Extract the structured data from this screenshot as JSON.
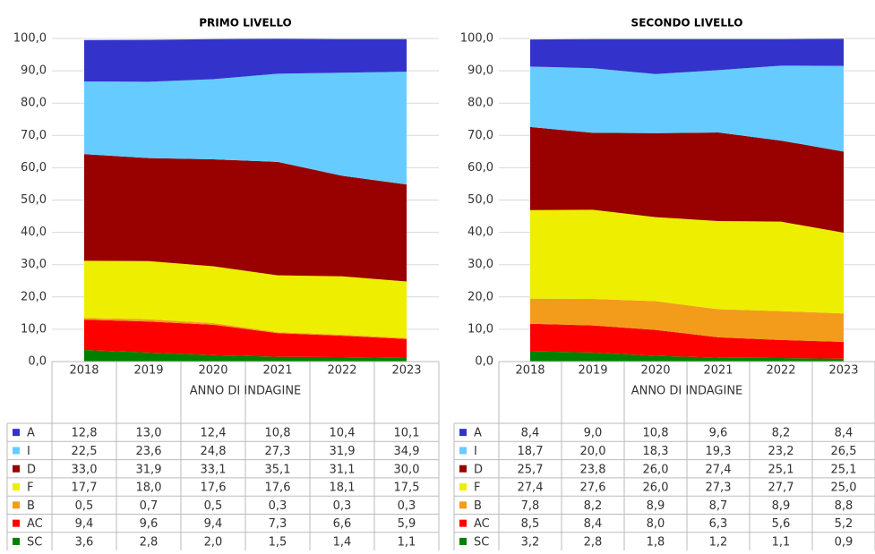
{
  "chart_data": [
    {
      "type": "area",
      "stacked": true,
      "title": "PRIMO LIVELLO",
      "xlabel": "ANNO DI INDAGINE",
      "categories": [
        "2018",
        "2019",
        "2020",
        "2021",
        "2022",
        "2023"
      ],
      "ylim": [
        0,
        100
      ],
      "yticks": [
        {
          "value": 0,
          "label": "0,0"
        },
        {
          "value": 10,
          "label": "10,0"
        },
        {
          "value": 20,
          "label": "20,0"
        },
        {
          "value": 30,
          "label": "30,0"
        },
        {
          "value": 40,
          "label": "40,0"
        },
        {
          "value": 50,
          "label": "50,0"
        },
        {
          "value": 60,
          "label": "60,0"
        },
        {
          "value": 70,
          "label": "70,0"
        },
        {
          "value": 80,
          "label": "80,0"
        },
        {
          "value": 90,
          "label": "90,0"
        },
        {
          "value": 100,
          "label": "100,0"
        }
      ],
      "grid": true,
      "series": [
        {
          "name": "A",
          "color": "#3333cc",
          "values": [
            12.8,
            13.0,
            12.4,
            10.8,
            10.4,
            10.1
          ],
          "value_labels": [
            "12,8",
            "13,0",
            "12,4",
            "10,8",
            "10,4",
            "10,1"
          ]
        },
        {
          "name": "I",
          "color": "#66ccff",
          "values": [
            22.5,
            23.6,
            24.8,
            27.3,
            31.9,
            34.9
          ],
          "value_labels": [
            "22,5",
            "23,6",
            "24,8",
            "27,3",
            "31,9",
            "34,9"
          ]
        },
        {
          "name": "D",
          "color": "#990000",
          "values": [
            33.0,
            31.9,
            33.1,
            35.1,
            31.1,
            30.0
          ],
          "value_labels": [
            "33,0",
            "31,9",
            "33,1",
            "35,1",
            "31,1",
            "30,0"
          ]
        },
        {
          "name": "F",
          "color": "#eeee00",
          "values": [
            17.7,
            18.0,
            17.6,
            17.6,
            18.1,
            17.5
          ],
          "value_labels": [
            "17,7",
            "18,0",
            "17,6",
            "17,6",
            "18,1",
            "17,5"
          ]
        },
        {
          "name": "B",
          "color": "#f39c1c",
          "values": [
            0.5,
            0.7,
            0.5,
            0.3,
            0.3,
            0.3
          ],
          "value_labels": [
            "0,5",
            "0,7",
            "0,5",
            "0,3",
            "0,3",
            "0,3"
          ]
        },
        {
          "name": "AC",
          "color": "#ff0000",
          "values": [
            9.4,
            9.6,
            9.4,
            7.3,
            6.6,
            5.9
          ],
          "value_labels": [
            "9,4",
            "9,6",
            "9,4",
            "7,3",
            "6,6",
            "5,9"
          ]
        },
        {
          "name": "SC",
          "color": "#008000",
          "values": [
            3.6,
            2.8,
            2.0,
            1.5,
            1.4,
            1.1
          ],
          "value_labels": [
            "3,6",
            "2,8",
            "2,0",
            "1,5",
            "1,4",
            "1,1"
          ]
        }
      ]
    },
    {
      "type": "area",
      "stacked": true,
      "title": "SECONDO LIVELLO",
      "xlabel": "ANNO DI INDAGINE",
      "categories": [
        "2018",
        "2019",
        "2020",
        "2021",
        "2022",
        "2023"
      ],
      "ylim": [
        0,
        100
      ],
      "yticks": [
        {
          "value": 0,
          "label": "0,0"
        },
        {
          "value": 10,
          "label": "10,0"
        },
        {
          "value": 20,
          "label": "20,0"
        },
        {
          "value": 30,
          "label": "30,0"
        },
        {
          "value": 40,
          "label": "40,0"
        },
        {
          "value": 50,
          "label": "50,0"
        },
        {
          "value": 60,
          "label": "60,0"
        },
        {
          "value": 70,
          "label": "70,0"
        },
        {
          "value": 80,
          "label": "80,0"
        },
        {
          "value": 90,
          "label": "90,0"
        },
        {
          "value": 100,
          "label": "100,0"
        }
      ],
      "grid": true,
      "series": [
        {
          "name": "A",
          "color": "#3333cc",
          "values": [
            8.4,
            9.0,
            10.8,
            9.6,
            8.2,
            8.4
          ],
          "value_labels": [
            "8,4",
            "9,0",
            "10,8",
            "9,6",
            "8,2",
            "8,4"
          ]
        },
        {
          "name": "I",
          "color": "#66ccff",
          "values": [
            18.7,
            20.0,
            18.3,
            19.3,
            23.2,
            26.5
          ],
          "value_labels": [
            "18,7",
            "20,0",
            "18,3",
            "19,3",
            "23,2",
            "26,5"
          ]
        },
        {
          "name": "D",
          "color": "#990000",
          "values": [
            25.7,
            23.8,
            26.0,
            27.4,
            25.1,
            25.1
          ],
          "value_labels": [
            "25,7",
            "23,8",
            "26,0",
            "27,4",
            "25,1",
            "25,1"
          ]
        },
        {
          "name": "F",
          "color": "#eeee00",
          "values": [
            27.4,
            27.6,
            26.0,
            27.3,
            27.7,
            25.0
          ],
          "value_labels": [
            "27,4",
            "27,6",
            "26,0",
            "27,3",
            "27,7",
            "25,0"
          ]
        },
        {
          "name": "B",
          "color": "#f39c1c",
          "values": [
            7.8,
            8.2,
            8.9,
            8.7,
            8.9,
            8.8
          ],
          "value_labels": [
            "7,8",
            "8,2",
            "8,9",
            "8,7",
            "8,9",
            "8,8"
          ]
        },
        {
          "name": "AC",
          "color": "#ff0000",
          "values": [
            8.5,
            8.4,
            8.0,
            6.3,
            5.6,
            5.2
          ],
          "value_labels": [
            "8,5",
            "8,4",
            "8,0",
            "6,3",
            "5,6",
            "5,2"
          ]
        },
        {
          "name": "SC",
          "color": "#008000",
          "values": [
            3.2,
            2.8,
            1.8,
            1.2,
            1.1,
            0.9
          ],
          "value_labels": [
            "3,2",
            "2,8",
            "1,8",
            "1,2",
            "1,1",
            "0,9"
          ]
        }
      ]
    }
  ]
}
